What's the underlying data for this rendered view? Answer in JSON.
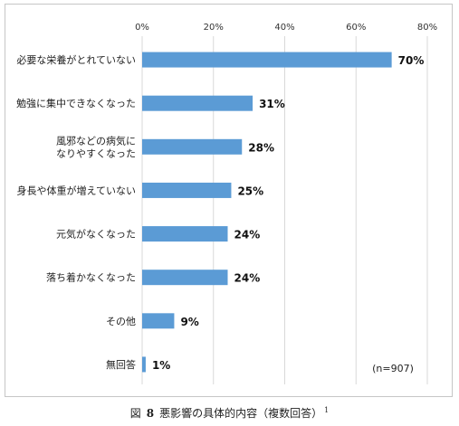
{
  "chart_data": {
    "type": "bar",
    "orientation": "horizontal",
    "categories": [
      "必要な栄養がとれていない",
      "勉強に集中できなくなった",
      "風邪などの病気に\nなりやすくなった",
      "身長や体重が増えていない",
      "元気がなくなった",
      "落ち着かなくなった",
      "その他",
      "無回答"
    ],
    "values": [
      70,
      31,
      28,
      25,
      24,
      24,
      9,
      1
    ],
    "value_labels": [
      "70%",
      "31%",
      "28%",
      "25%",
      "24%",
      "24%",
      "9%",
      "1%"
    ],
    "x_ticks": [
      "0%",
      "20%",
      "40%",
      "60%",
      "80%"
    ],
    "xlim": [
      0,
      80
    ],
    "grid": true,
    "bar_color": "#5b9bd5",
    "annotation": "(n=907)"
  },
  "caption": {
    "prefix": "図",
    "number": "8",
    "title": "悪影響の具体的内容（複数回答）",
    "footnote": "1"
  }
}
